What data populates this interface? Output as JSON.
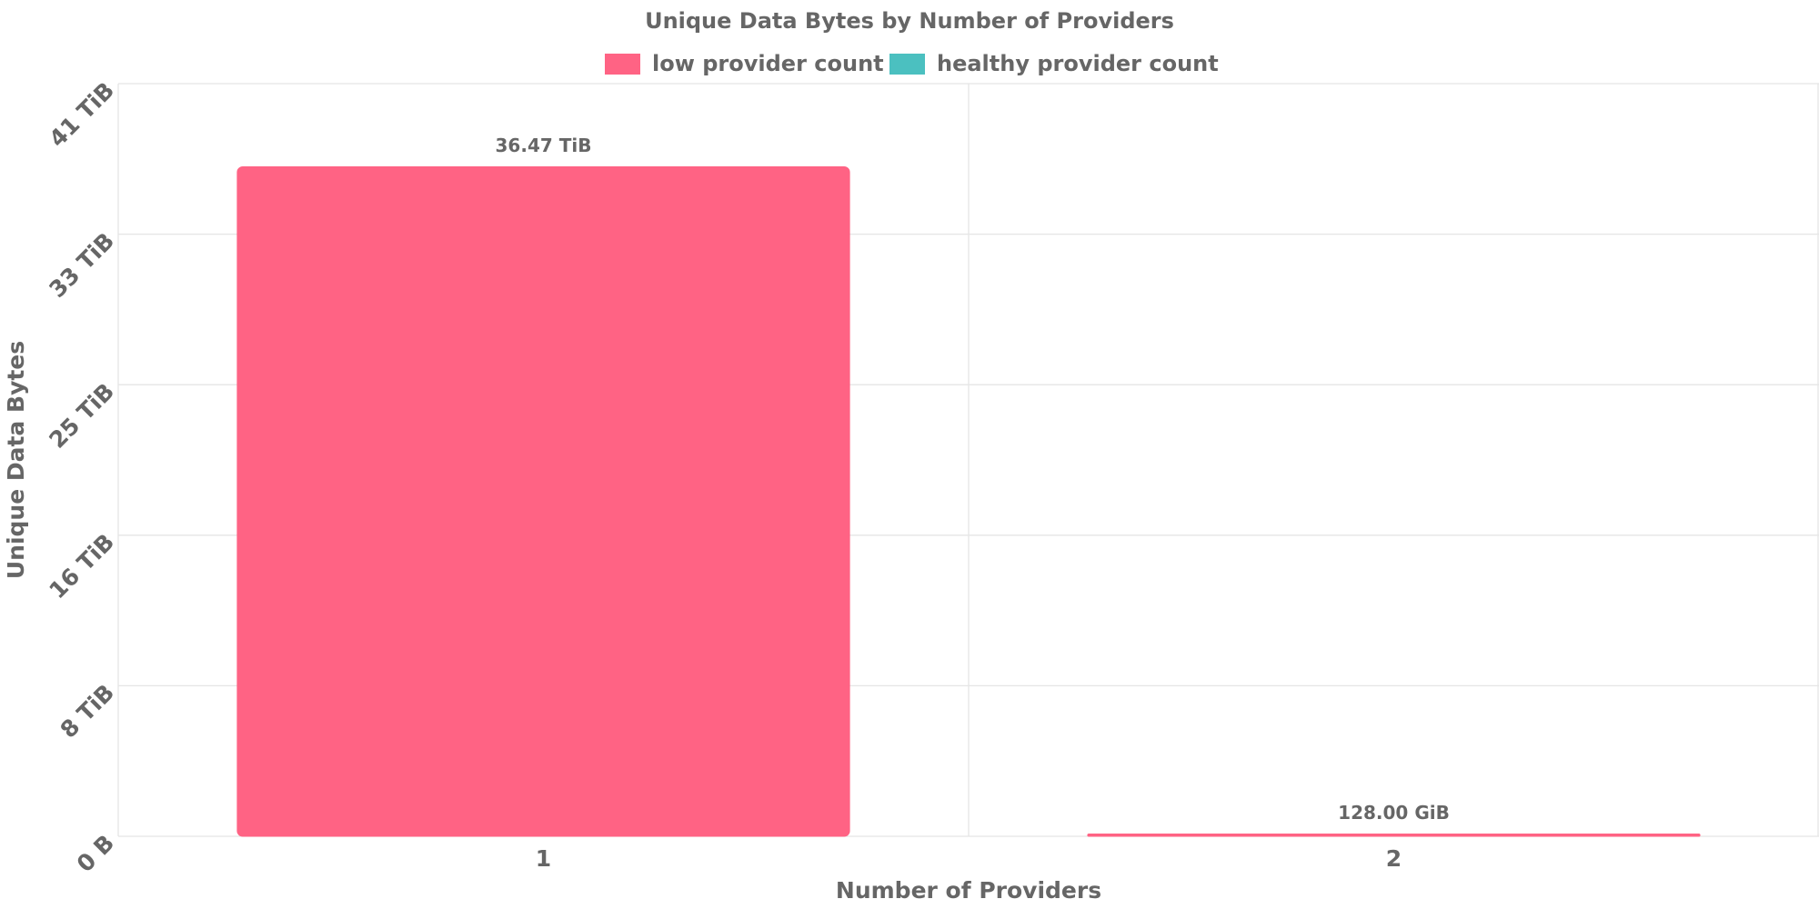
{
  "chart_data": {
    "type": "bar",
    "title": "Unique Data Bytes by Number of Providers",
    "x_label": "Number of Providers",
    "y_label": "Unique Data Bytes",
    "categories": [
      "1",
      "2"
    ],
    "series": [
      {
        "name": "low provider count",
        "color": "#ff6384",
        "values": [
          36.47,
          0.125
        ],
        "value_labels": [
          "36.47 TiB",
          "128.00 GiB"
        ]
      },
      {
        "name": "healthy provider count",
        "color": "#4bc0c0",
        "values": [
          null,
          null
        ]
      }
    ],
    "ylim": [
      0,
      41
    ],
    "yticks": [
      {
        "value": 0,
        "label": "0 B"
      },
      {
        "value": 8.2,
        "label": "8 TiB"
      },
      {
        "value": 16.4,
        "label": "16 TiB"
      },
      {
        "value": 24.6,
        "label": "25 TiB"
      },
      {
        "value": 32.8,
        "label": "33 TiB"
      },
      {
        "value": 41,
        "label": "41 TiB"
      }
    ],
    "grid": true
  }
}
